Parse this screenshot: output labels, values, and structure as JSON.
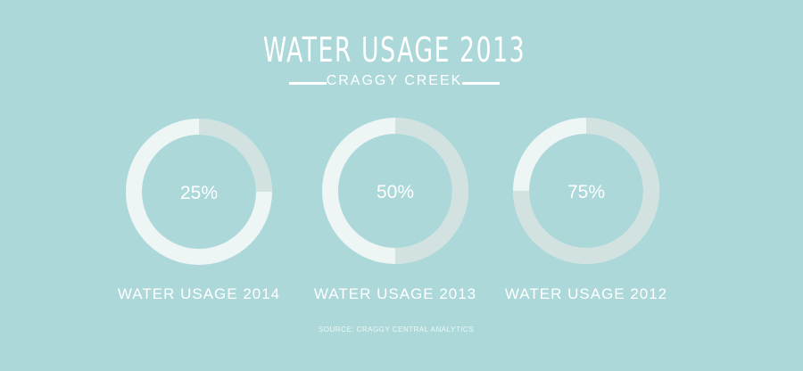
{
  "header": {
    "title": "WATER USAGE 2013",
    "subtitle": "CRAGGY CREEK"
  },
  "chart_data": {
    "type": "donut",
    "items": [
      {
        "label": "WATER USAGE 2014",
        "value": 25,
        "value_label": "25%"
      },
      {
        "label": "WATER USAGE 2013",
        "value": 50,
        "value_label": "50%"
      },
      {
        "label": "WATER USAGE 2012",
        "value": 75,
        "value_label": "75%"
      }
    ],
    "max": 100
  },
  "footer": {
    "source": "SOURCE: CRAGGY CENTRAL ANALYTICS"
  },
  "colors": {
    "background": "#acd8d9",
    "ring_filled": "#d1e2e0",
    "ring_rest": "#edf5f5"
  }
}
